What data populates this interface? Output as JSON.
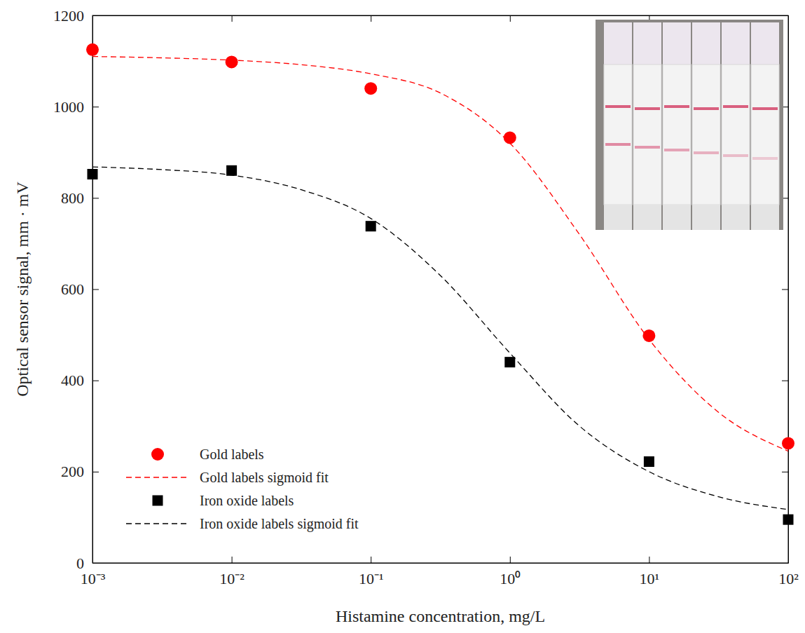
{
  "chart_data": {
    "type": "scatter",
    "x_label": "Histamine concentration, mg/L",
    "y_label": "Optical sensor signal, mm · mV",
    "log": "x",
    "grid": false,
    "legend": "lower left",
    "xlim": [
      0.001,
      100
    ],
    "ylim": [
      0,
      1200
    ],
    "xticks": [
      {
        "value": 0.001,
        "label": "10⁻³"
      },
      {
        "value": 0.01,
        "label": "10⁻²"
      },
      {
        "value": 0.1,
        "label": "10⁻¹"
      },
      {
        "value": 1,
        "label": "10⁰"
      },
      {
        "value": 10,
        "label": "10¹"
      },
      {
        "value": 100,
        "label": "10²"
      }
    ],
    "yticks": [
      0,
      200,
      400,
      600,
      800,
      1000,
      1200
    ],
    "series": [
      {
        "name": "Gold labels",
        "type": "scatter",
        "marker": "circle",
        "color": "#ff0000",
        "x": [
          0.001,
          0.01,
          0.1,
          1,
          10,
          100
        ],
        "values": [
          1125,
          1098,
          1040,
          932,
          498,
          262
        ]
      },
      {
        "name": "Gold labels sigmoid fit",
        "type": "line",
        "line_style": "dashed",
        "color": "#ff0000",
        "x": [
          0.001,
          0.00316,
          0.01,
          0.0316,
          0.1,
          0.316,
          1,
          3.16,
          10,
          31.6,
          100
        ],
        "values": [
          1110,
          1107,
          1102,
          1092,
          1072,
          1030,
          920,
          720,
          490,
          330,
          245
        ]
      },
      {
        "name": "Iron oxide labels",
        "type": "scatter",
        "marker": "square",
        "color": "#000000",
        "x": [
          0.001,
          0.01,
          0.1,
          1,
          10,
          100
        ],
        "values": [
          852,
          860,
          738,
          440,
          222,
          95
        ]
      },
      {
        "name": "Iron oxide labels sigmoid fit",
        "type": "line",
        "line_style": "dashed",
        "color": "#000000",
        "x": [
          0.001,
          0.00316,
          0.01,
          0.0316,
          0.1,
          0.316,
          1,
          3.16,
          10,
          31.6,
          100
        ],
        "values": [
          868,
          862,
          850,
          818,
          755,
          630,
          460,
          300,
          200,
          145,
          117
        ]
      }
    ]
  }
}
